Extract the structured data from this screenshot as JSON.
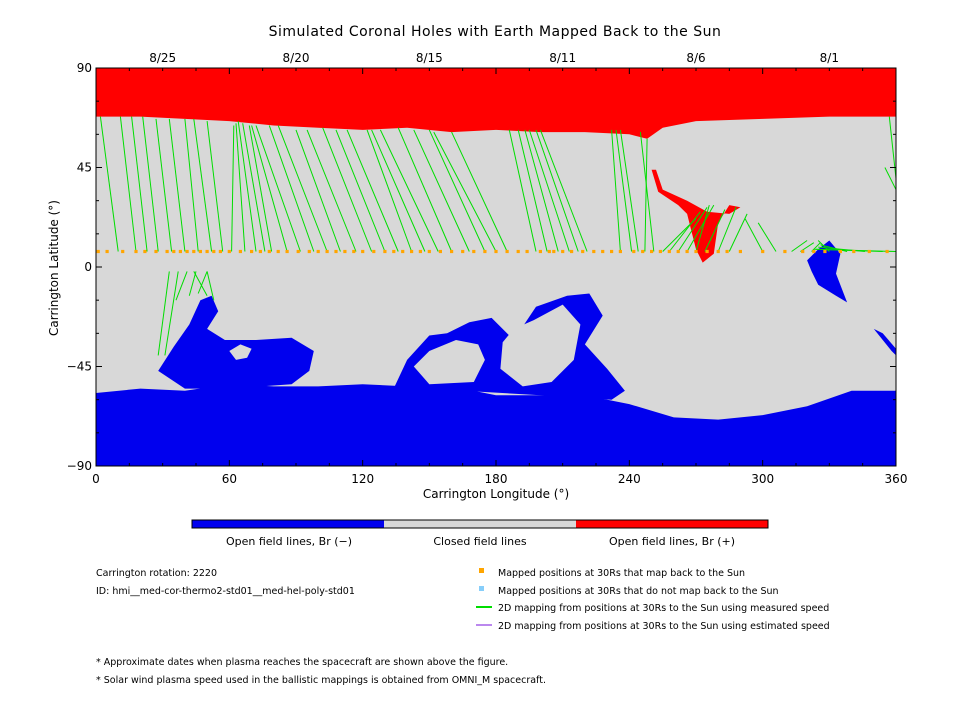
{
  "chart_data": {
    "type": "map",
    "title": "Simulated Coronal Holes with Earth Mapped Back to the Sun",
    "xlabel": "Carrington Longitude (°)",
    "ylabel": "Carrington Latitude (°)",
    "xlim": [
      0,
      360
    ],
    "ylim": [
      -90,
      90
    ],
    "x_ticks": [
      0,
      60,
      120,
      180,
      240,
      300,
      360
    ],
    "y_ticks": [
      -90,
      -45,
      0,
      45,
      90
    ],
    "y_tick_labels": [
      "−90",
      "−45",
      "0",
      "45",
      "90"
    ],
    "top_date_ticks": [
      {
        "label": "8/25",
        "lon": 30
      },
      {
        "label": "8/20",
        "lon": 90
      },
      {
        "label": "8/15",
        "lon": 150
      },
      {
        "label": "8/11",
        "lon": 210
      },
      {
        "label": "8/6",
        "lon": 270
      },
      {
        "label": "8/1",
        "lon": 330
      }
    ],
    "colors": {
      "open_negative": "#0000ee",
      "closed": "#d8d8d8",
      "open_positive": "#ff0000",
      "mapped_point": "#ffa500",
      "unmapped_point": "#87cefa",
      "measured_line": "#00dd00",
      "estimated_line": "#bb88ee"
    },
    "colorbar": [
      "Open field lines, Br (−)",
      "Closed field lines",
      "Open field lines, Br (+)"
    ],
    "positive_polar_boundary": [
      [
        0,
        68
      ],
      [
        20,
        68
      ],
      [
        40,
        67
      ],
      [
        60,
        66
      ],
      [
        80,
        64
      ],
      [
        100,
        63
      ],
      [
        120,
        62
      ],
      [
        140,
        63
      ],
      [
        160,
        61
      ],
      [
        180,
        62
      ],
      [
        200,
        61
      ],
      [
        220,
        61
      ],
      [
        240,
        60
      ],
      [
        248,
        58
      ],
      [
        255,
        63
      ],
      [
        270,
        66
      ],
      [
        300,
        67
      ],
      [
        330,
        68
      ],
      [
        360,
        68
      ]
    ],
    "negative_polar_boundary": [
      [
        0,
        -57
      ],
      [
        20,
        -55
      ],
      [
        40,
        -56
      ],
      [
        60,
        -53
      ],
      [
        80,
        -54
      ],
      [
        100,
        -54
      ],
      [
        120,
        -53
      ],
      [
        140,
        -54
      ],
      [
        160,
        -54
      ],
      [
        180,
        -58
      ],
      [
        200,
        -58
      ],
      [
        220,
        -58
      ],
      [
        240,
        -62
      ],
      [
        260,
        -68
      ],
      [
        280,
        -69
      ],
      [
        300,
        -67
      ],
      [
        320,
        -63
      ],
      [
        340,
        -56
      ],
      [
        360,
        -56
      ]
    ],
    "negative_holes": [
      {
        "name": "south-extension-a",
        "boundary": [
          [
            28,
            -47
          ],
          [
            35,
            -36
          ],
          [
            42,
            -26
          ],
          [
            47,
            -15
          ],
          [
            52,
            -13
          ],
          [
            55,
            -20
          ],
          [
            50,
            -28
          ],
          [
            58,
            -33
          ],
          [
            72,
            -33
          ],
          [
            88,
            -32
          ],
          [
            98,
            -38
          ],
          [
            96,
            -47
          ],
          [
            88,
            -53
          ],
          [
            60,
            -55
          ],
          [
            40,
            -55
          ]
        ]
      },
      {
        "name": "south-extension-b",
        "boundary": [
          [
            133,
            -57
          ],
          [
            140,
            -42
          ],
          [
            150,
            -31
          ],
          [
            158,
            -30
          ],
          [
            168,
            -25
          ],
          [
            178,
            -23
          ],
          [
            188,
            -33
          ],
          [
            198,
            -18
          ],
          [
            212,
            -13
          ],
          [
            222,
            -12
          ],
          [
            228,
            -22
          ],
          [
            220,
            -35
          ],
          [
            230,
            -46
          ],
          [
            238,
            -56
          ],
          [
            232,
            -60
          ],
          [
            200,
            -58
          ],
          [
            165,
            -56
          ]
        ]
      },
      {
        "name": "equatorial-hole-320",
        "boundary": [
          [
            320,
            3
          ],
          [
            325,
            8
          ],
          [
            330,
            12
          ],
          [
            335,
            6
          ],
          [
            333,
            -3
          ],
          [
            338,
            -16
          ],
          [
            333,
            -13
          ],
          [
            325,
            -8
          ],
          [
            322,
            -2
          ]
        ]
      },
      {
        "name": "southeast-patch",
        "boundary": [
          [
            350,
            -28
          ],
          [
            358,
            -38
          ],
          [
            360,
            -40
          ],
          [
            360,
            -37
          ],
          [
            354,
            -30
          ]
        ]
      }
    ],
    "closed_islands": [
      {
        "name": "island-a",
        "boundary": [
          [
            65,
            -35
          ],
          [
            70,
            -37
          ],
          [
            68,
            -41
          ],
          [
            63,
            -42
          ],
          [
            60,
            -38
          ]
        ]
      },
      {
        "name": "island-b",
        "boundary": [
          [
            143,
            -45
          ],
          [
            150,
            -38
          ],
          [
            162,
            -33
          ],
          [
            172,
            -35
          ],
          [
            175,
            -42
          ],
          [
            170,
            -52
          ],
          [
            150,
            -53
          ]
        ]
      },
      {
        "name": "island-c",
        "boundary": [
          [
            182,
            -46
          ],
          [
            183,
            -34
          ],
          [
            188,
            -28
          ],
          [
            197,
            -24
          ],
          [
            210,
            -17
          ],
          [
            218,
            -26
          ],
          [
            215,
            -42
          ],
          [
            205,
            -52
          ],
          [
            192,
            -54
          ]
        ]
      }
    ],
    "positive_holes": [
      {
        "name": "midlatitude-tongue",
        "boundary": [
          [
            250,
            44
          ],
          [
            253,
            34
          ],
          [
            262,
            28
          ],
          [
            266,
            24
          ],
          [
            270,
            8
          ],
          [
            273,
            2
          ],
          [
            278,
            6
          ],
          [
            280,
            20
          ],
          [
            285,
            28
          ],
          [
            290,
            27
          ],
          [
            285,
            24
          ],
          [
            275,
            25
          ],
          [
            266,
            30
          ],
          [
            255,
            35
          ],
          [
            252,
            44
          ]
        ]
      }
    ],
    "spacecraft_latitude": 7,
    "mapped_longitudes": [
      1,
      5,
      12,
      18,
      22,
      27,
      32,
      35,
      38,
      41,
      44,
      47,
      50,
      53,
      56,
      60,
      65,
      70,
      74,
      78,
      82,
      86,
      91,
      96,
      100,
      104,
      108,
      112,
      116,
      120,
      125,
      130,
      134,
      138,
      142,
      146,
      150,
      155,
      160,
      165,
      170,
      175,
      180,
      185,
      190,
      194,
      200,
      204,
      206,
      210,
      214,
      219,
      224,
      228,
      232,
      236,
      242,
      246,
      250,
      254,
      258,
      262,
      266,
      270,
      275,
      280,
      284,
      290,
      300,
      310,
      318,
      323,
      328,
      335,
      341,
      348,
      356
    ],
    "mapping_lines": [
      [
        10,
        7,
        2,
        68
      ],
      [
        18,
        7,
        11,
        68
      ],
      [
        23,
        7,
        16,
        68
      ],
      [
        28,
        7,
        21,
        68
      ],
      [
        34,
        7,
        27,
        67
      ],
      [
        40,
        7,
        33,
        67
      ],
      [
        46,
        7,
        40,
        67
      ],
      [
        52,
        7,
        44,
        67
      ],
      [
        57,
        7,
        50,
        66
      ],
      [
        61,
        7,
        62,
        64
      ],
      [
        67,
        7,
        63,
        65
      ],
      [
        72,
        7,
        64,
        66
      ],
      [
        76,
        7,
        66,
        65
      ],
      [
        79,
        7,
        69,
        64
      ],
      [
        86,
        7,
        70,
        64
      ],
      [
        92,
        7,
        72,
        64
      ],
      [
        98,
        7,
        78,
        64
      ],
      [
        104,
        7,
        82,
        64
      ],
      [
        110,
        7,
        90,
        62
      ],
      [
        117,
        7,
        95,
        62
      ],
      [
        124,
        7,
        102,
        63
      ],
      [
        130,
        7,
        108,
        62
      ],
      [
        136,
        7,
        113,
        62
      ],
      [
        142,
        7,
        122,
        62
      ],
      [
        148,
        7,
        124,
        62
      ],
      [
        154,
        7,
        128,
        62
      ],
      [
        160,
        7,
        136,
        63
      ],
      [
        168,
        7,
        143,
        62
      ],
      [
        175,
        7,
        150,
        62
      ],
      [
        180,
        7,
        152,
        61
      ],
      [
        185,
        7,
        160,
        61
      ],
      [
        198,
        7,
        186,
        62
      ],
      [
        203,
        7,
        190,
        62
      ],
      [
        208,
        7,
        193,
        62
      ],
      [
        213,
        7,
        195,
        62
      ],
      [
        217,
        7,
        198,
        62
      ],
      [
        221,
        7,
        200,
        62
      ],
      [
        236,
        7,
        232,
        62
      ],
      [
        241,
        7,
        234,
        62
      ],
      [
        244,
        7,
        236,
        62
      ],
      [
        247,
        7,
        248,
        58
      ],
      [
        251,
        7,
        245,
        61
      ],
      [
        33,
        -2,
        28,
        -40
      ],
      [
        37,
        -2,
        31,
        -40
      ],
      [
        41,
        -2,
        36,
        -15
      ],
      [
        45,
        -2,
        42,
        -13
      ],
      [
        50,
        -2,
        46,
        -12
      ],
      [
        44,
        -2,
        50,
        -13
      ],
      [
        50,
        -2,
        53,
        -15
      ],
      [
        255,
        7,
        270,
        22
      ],
      [
        258,
        7,
        272,
        25
      ],
      [
        262,
        7,
        275,
        27
      ],
      [
        266,
        7,
        278,
        28
      ],
      [
        270,
        7,
        276,
        28
      ],
      [
        274,
        7,
        283,
        26
      ],
      [
        280,
        7,
        288,
        27
      ],
      [
        285,
        7,
        293,
        24
      ],
      [
        300,
        7,
        292,
        22
      ],
      [
        306,
        7,
        298,
        20
      ],
      [
        313,
        7,
        320,
        12
      ],
      [
        317,
        7,
        323,
        11
      ],
      [
        322,
        7,
        326,
        11
      ],
      [
        330,
        7,
        325,
        12
      ],
      [
        338,
        7,
        326,
        10
      ],
      [
        346,
        7,
        325,
        9
      ],
      [
        354,
        7,
        324,
        8
      ],
      [
        360,
        7,
        323,
        8
      ],
      [
        355,
        45,
        360,
        35
      ],
      [
        357,
        68,
        360,
        40
      ]
    ]
  },
  "colorbar_labels": {
    "neg": "Open field lines, Br (−)",
    "closed": "Closed field lines",
    "pos": "Open field lines, Br (+)"
  },
  "info": {
    "rotation": "Carrington rotation: 2220",
    "id": "ID: hmi__med-cor-thermo2-std01__med-hel-poly-std01"
  },
  "legend": [
    {
      "label": "Mapped positions at 30Rs that map back to the Sun",
      "kind": "square",
      "color": "#ffa500"
    },
    {
      "label": "Mapped positions at 30Rs that do not map back to the Sun",
      "kind": "square",
      "color": "#87cefa"
    },
    {
      "label": "2D mapping from positions at 30Rs to the Sun using measured speed",
      "kind": "line",
      "color": "#00dd00"
    },
    {
      "label": "2D mapping from positions at 30Rs to the Sun using estimated speed",
      "kind": "line",
      "color": "#bb88ee"
    }
  ],
  "footnotes": [
    "* Approximate dates when plasma reaches the spacecraft are shown above the figure.",
    "* Solar wind plasma speed used in the ballistic mappings is obtained from OMNI_M spacecraft."
  ]
}
